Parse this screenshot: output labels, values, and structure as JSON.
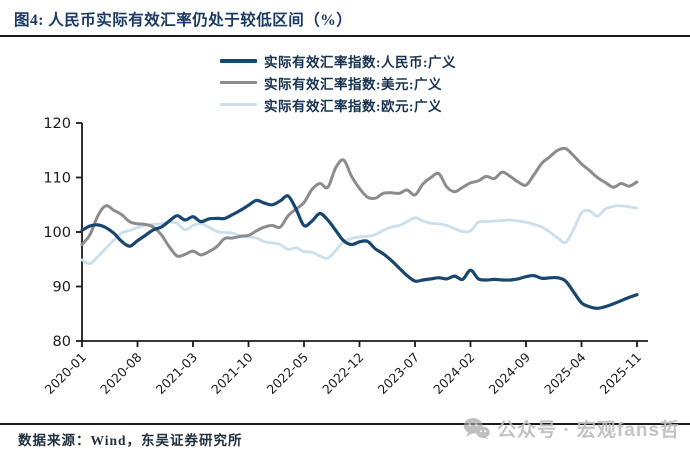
{
  "title": "图4: 人民币实际有效汇率仍处于较低区间（%）",
  "footer": {
    "source": "数据来源：Wind，东吴证券研究所"
  },
  "watermark": {
    "label": "公众号 · 宏观fans哲",
    "icon": "wechat-icon"
  },
  "colors": {
    "title": "#1b3a63",
    "rule": "#1c1c1c",
    "axis": "#1a1a1a",
    "tick_label": "#1a1a1a",
    "rmb_line": "#17466e",
    "usd_line": "#8c8c8c",
    "eur_line": "#cbdfed",
    "watermark_gray": "#bdbdbd"
  },
  "chart_data": {
    "type": "line",
    "title": "人民币实际有效汇率仍处于较低区间（%）",
    "xlabel": "",
    "ylabel": "",
    "ylim": [
      80,
      120
    ],
    "yticks": [
      80,
      90,
      100,
      110,
      120
    ],
    "grid": false,
    "legend_position": "top-center",
    "x_tick_indices": [
      0,
      7,
      14,
      21,
      28,
      35,
      42,
      49,
      56,
      63,
      70
    ],
    "x_tick_labels": [
      "2020-01",
      "2020-08",
      "2021-03",
      "2021-10",
      "2022-05",
      "2022-12",
      "2023-07",
      "2024-02",
      "2024-09",
      "2025-04",
      "2025-11"
    ],
    "months": [
      "2020-01",
      "2020-02",
      "2020-03",
      "2020-04",
      "2020-05",
      "2020-06",
      "2020-07",
      "2020-08",
      "2020-09",
      "2020-10",
      "2020-11",
      "2020-12",
      "2021-01",
      "2021-02",
      "2021-03",
      "2021-04",
      "2021-05",
      "2021-06",
      "2021-07",
      "2021-08",
      "2021-09",
      "2021-10",
      "2021-11",
      "2021-12",
      "2022-01",
      "2022-02",
      "2022-03",
      "2022-04",
      "2022-05",
      "2022-06",
      "2022-07",
      "2022-08",
      "2022-09",
      "2022-10",
      "2022-11",
      "2022-12",
      "2023-01",
      "2023-02",
      "2023-03",
      "2023-04",
      "2023-05",
      "2023-06",
      "2023-07",
      "2023-08",
      "2023-09",
      "2023-10",
      "2023-11",
      "2023-12",
      "2024-01",
      "2024-02",
      "2024-03",
      "2024-04",
      "2024-05",
      "2024-06",
      "2024-07",
      "2024-08",
      "2024-09",
      "2024-10",
      "2024-11",
      "2024-12",
      "2025-01",
      "2025-02",
      "2025-03",
      "2025-04",
      "2025-05",
      "2025-06",
      "2025-07",
      "2025-08",
      "2025-09",
      "2025-10",
      "2025-11"
    ],
    "series": [
      {
        "name": "实际有效汇率指数:人民币:广义",
        "color": "#17466e",
        "stroke_width": 3.2,
        "values": [
          100.3,
          101.1,
          101.3,
          100.8,
          99.8,
          98.3,
          97.4,
          98.4,
          99.4,
          100.4,
          100.9,
          102.0,
          103.0,
          102.2,
          102.8,
          101.9,
          102.4,
          102.5,
          102.5,
          103.2,
          104.0,
          104.9,
          105.8,
          105.3,
          105.0,
          105.7,
          106.6,
          104.2,
          101.2,
          102.0,
          103.4,
          102.2,
          100.3,
          98.4,
          97.7,
          98.2,
          98.3,
          96.9,
          96.0,
          94.8,
          93.4,
          92.0,
          91.0,
          91.2,
          91.4,
          91.6,
          91.4,
          91.9,
          91.3,
          93.0,
          91.4,
          91.2,
          91.3,
          91.2,
          91.2,
          91.4,
          91.8,
          92.0,
          91.5,
          91.6,
          91.6,
          91.0,
          89.0,
          87.0,
          86.3,
          86.0,
          86.3,
          86.8,
          87.4,
          88.0,
          88.5
        ]
      },
      {
        "name": "实际有效汇率指数:美元:广义",
        "color": "#8c8c8c",
        "stroke_width": 3.0,
        "values": [
          97.7,
          99.5,
          103.0,
          104.8,
          104.0,
          103.2,
          101.9,
          101.5,
          101.4,
          100.9,
          99.5,
          97.3,
          95.6,
          95.9,
          96.5,
          95.8,
          96.4,
          97.3,
          98.8,
          98.9,
          99.2,
          99.4,
          100.2,
          100.9,
          101.2,
          100.9,
          103.0,
          104.2,
          105.4,
          107.8,
          108.9,
          108.2,
          111.8,
          113.2,
          110.2,
          108.0,
          106.4,
          106.2,
          107.1,
          107.2,
          107.1,
          107.7,
          106.8,
          108.8,
          110.0,
          110.7,
          108.3,
          107.4,
          108.2,
          109.0,
          109.4,
          110.2,
          109.8,
          111.0,
          110.2,
          109.2,
          108.6,
          110.5,
          112.6,
          113.8,
          115.0,
          115.3,
          114.0,
          112.5,
          111.3,
          110.0,
          109.1,
          108.2,
          108.9,
          108.4,
          109.2
        ]
      },
      {
        "name": "实际有效汇率指数:欧元:广义",
        "color": "#cbdfed",
        "stroke_width": 2.8,
        "values": [
          94.9,
          94.2,
          95.5,
          97.0,
          98.5,
          99.8,
          100.3,
          100.8,
          101.2,
          101.4,
          101.5,
          101.8,
          101.6,
          100.4,
          101.2,
          101.5,
          100.9,
          100.1,
          99.9,
          99.8,
          99.3,
          99.1,
          98.9,
          98.2,
          98.0,
          97.7,
          96.8,
          97.1,
          96.4,
          96.3,
          95.6,
          95.2,
          96.6,
          98.2,
          98.8,
          99.1,
          99.2,
          99.5,
          100.3,
          100.9,
          101.2,
          101.9,
          102.6,
          102.0,
          101.6,
          101.5,
          101.2,
          100.6,
          100.1,
          100.2,
          101.8,
          101.9,
          102.0,
          102.1,
          102.2,
          102.0,
          101.8,
          101.4,
          100.9,
          100.0,
          98.9,
          98.1,
          100.5,
          103.5,
          103.9,
          102.9,
          104.2,
          104.7,
          104.8,
          104.6,
          104.4
        ]
      }
    ]
  }
}
